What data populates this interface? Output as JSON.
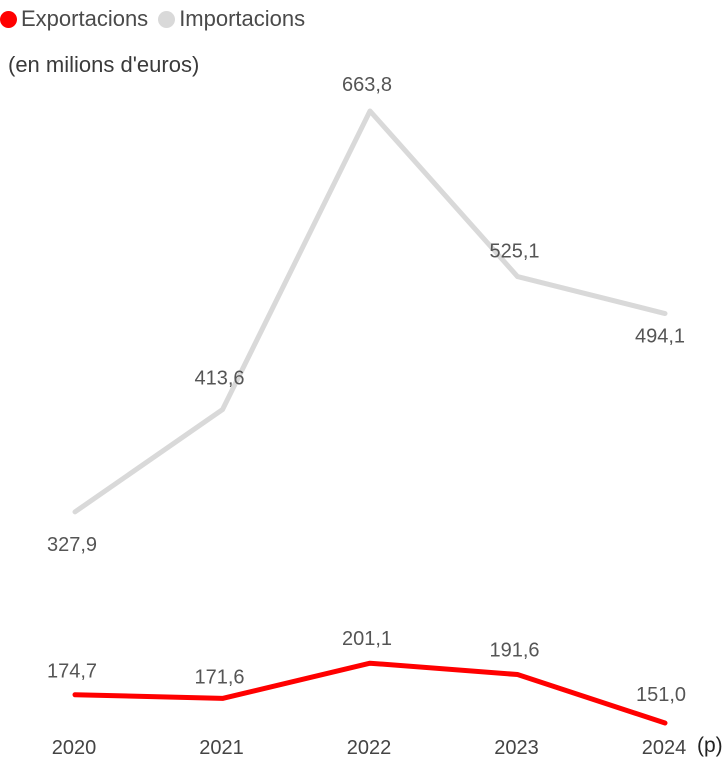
{
  "chart_data": {
    "type": "line",
    "title": "",
    "subtitle": "(en milions d'euros)",
    "categories": [
      "2020",
      "2021",
      "2022",
      "2023",
      "2024"
    ],
    "x_suffix": "(p)",
    "series": [
      {
        "name": "Exportacions",
        "color": "#ff0000",
        "values": [
          174.7,
          171.6,
          201.1,
          191.6,
          151.0
        ],
        "labels": [
          "174,7",
          "171,6",
          "201,1",
          "191,6",
          "151,0"
        ]
      },
      {
        "name": "Importacions",
        "color": "#d9d9d9",
        "values": [
          327.9,
          413.6,
          663.8,
          525.1,
          494.1
        ],
        "labels": [
          "327,9",
          "413,6",
          "663,8",
          "525,1",
          "494,1"
        ]
      }
    ],
    "ylim": [
      151.0,
      663.8
    ],
    "grid": false,
    "legend_position": "top-left"
  }
}
